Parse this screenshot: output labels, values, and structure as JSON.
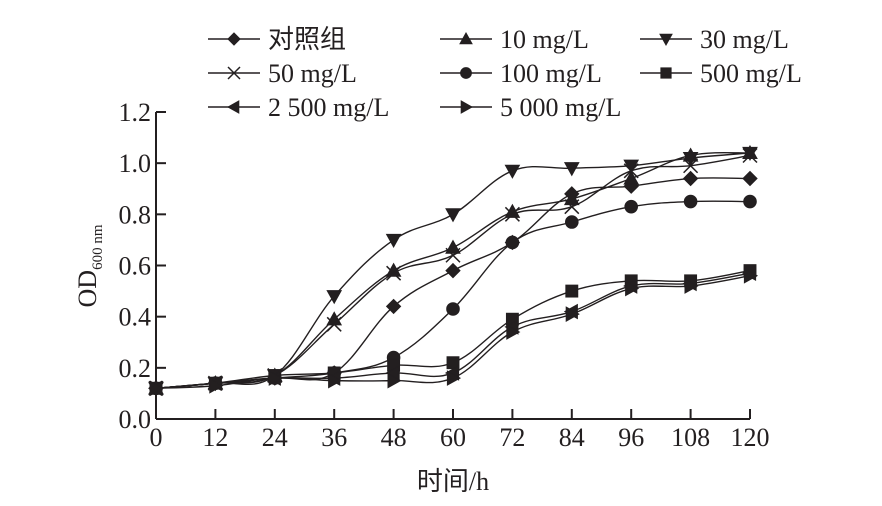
{
  "chart_data": {
    "type": "line",
    "title": "",
    "xlabel": "时间/h",
    "ylabel": "OD",
    "ylabel_subscript": "600 nm",
    "x": [
      0,
      12,
      24,
      36,
      48,
      60,
      72,
      84,
      96,
      108,
      120
    ],
    "x_tick_labels": [
      "0",
      "12",
      "24",
      "36",
      "48",
      "60",
      "72",
      "84",
      "96",
      "108",
      "120"
    ],
    "y_tick_labels": [
      "0.0",
      "0.2",
      "0.4",
      "0.6",
      "0.8",
      "1.0",
      "1.2"
    ],
    "y_ticks": [
      0.0,
      0.2,
      0.4,
      0.6,
      0.8,
      1.0,
      1.2
    ],
    "xlim": [
      0,
      120
    ],
    "ylim": [
      0,
      1.2
    ],
    "grid": false,
    "legend_position": "top",
    "series": [
      {
        "name": "对照组",
        "marker": "diamond",
        "values": [
          0.12,
          0.14,
          0.16,
          0.18,
          0.44,
          0.58,
          0.69,
          0.88,
          0.91,
          0.94,
          0.94
        ]
      },
      {
        "name": "10 mg/L",
        "marker": "triangle-up",
        "values": [
          0.12,
          0.14,
          0.17,
          0.39,
          0.58,
          0.67,
          0.81,
          0.86,
          0.94,
          1.03,
          1.04
        ]
      },
      {
        "name": "30 mg/L",
        "marker": "triangle-down",
        "values": [
          0.12,
          0.14,
          0.17,
          0.48,
          0.7,
          0.8,
          0.97,
          0.98,
          0.99,
          1.02,
          1.04
        ]
      },
      {
        "name": "50 mg/L",
        "marker": "x",
        "values": [
          0.12,
          0.14,
          0.17,
          0.37,
          0.57,
          0.64,
          0.8,
          0.83,
          0.97,
          0.99,
          1.03
        ]
      },
      {
        "name": "100 mg/L",
        "marker": "circle",
        "values": [
          0.12,
          0.14,
          0.16,
          0.18,
          0.24,
          0.43,
          0.69,
          0.77,
          0.83,
          0.85,
          0.85
        ]
      },
      {
        "name": "500 mg/L",
        "marker": "square",
        "values": [
          0.12,
          0.14,
          0.17,
          0.18,
          0.21,
          0.22,
          0.39,
          0.5,
          0.54,
          0.54,
          0.58
        ]
      },
      {
        "name": "2 500 mg/L",
        "marker": "triangle-left",
        "values": [
          0.12,
          0.14,
          0.16,
          0.16,
          0.18,
          0.18,
          0.36,
          0.42,
          0.52,
          0.53,
          0.57
        ]
      },
      {
        "name": "5 000 mg/L",
        "marker": "triangle-right",
        "values": [
          0.12,
          0.13,
          0.16,
          0.15,
          0.15,
          0.16,
          0.34,
          0.41,
          0.51,
          0.52,
          0.56
        ]
      }
    ]
  },
  "colors": {
    "ink": "#231f20",
    "background": "#ffffff"
  }
}
